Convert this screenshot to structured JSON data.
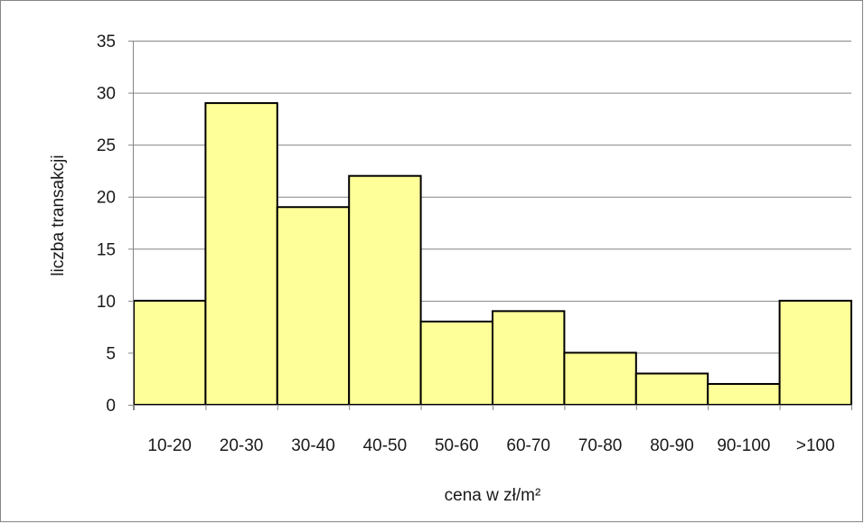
{
  "chart_data": {
    "type": "bar",
    "title": "",
    "xlabel": "cena w zł/m²",
    "ylabel": "liczba transakcji",
    "categories": [
      "10-20",
      "20-30",
      "30-40",
      "40-50",
      "50-60",
      "60-70",
      "70-80",
      "80-90",
      "90-100",
      ">100"
    ],
    "values": [
      10,
      29,
      19,
      22,
      8,
      9,
      5,
      3,
      2,
      10
    ],
    "ylim": [
      0,
      35
    ],
    "yticks": [
      0,
      5,
      10,
      15,
      20,
      25,
      30,
      35
    ],
    "grid": true,
    "legend": "none",
    "bar_color": "#FFFF99",
    "bar_edge_color": "#000000",
    "grid_color": "#868686"
  }
}
